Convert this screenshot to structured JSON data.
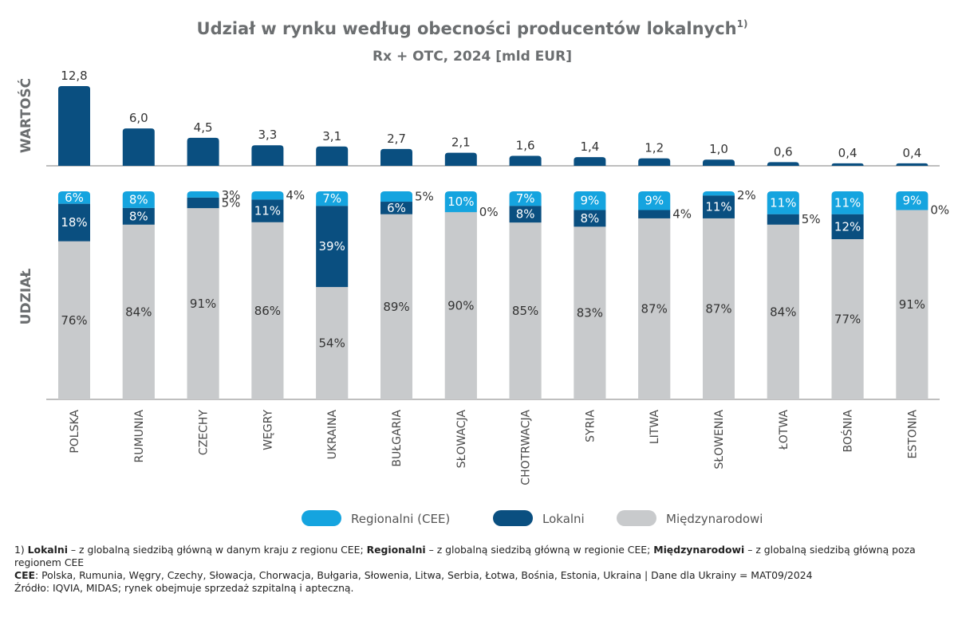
{
  "chart_data": {
    "type": "bar",
    "title": "Udział w rynku według obecności producentów lokalnych",
    "title_sup": "1)",
    "subtitle": "Rx + OTC, 2024 [mld EUR]",
    "top_panel_label": "WARTOŚĆ",
    "bottom_panel_label": "UDZIAŁ",
    "categories": [
      "POLSKA",
      "RUMUNIA",
      "CZECHY",
      "WĘGRY",
      "UKRAINA",
      "BUŁGARIA",
      "SŁOWACJA",
      "CHOTRWACJA",
      "SYRIA",
      "LITWA",
      "SŁOWENIA",
      "ŁOTWA",
      "BOŚNIA",
      "ESTONIA"
    ],
    "values": [
      12.8,
      6.0,
      4.5,
      3.3,
      3.1,
      2.7,
      2.1,
      1.6,
      1.4,
      1.2,
      1.0,
      0.6,
      0.4,
      0.4
    ],
    "value_labels": [
      "12,8",
      "6,0",
      "4,5",
      "3,3",
      "3,1",
      "2,7",
      "2,1",
      "1,6",
      "1,4",
      "1,2",
      "1,0",
      "0,6",
      "0,4",
      "0,4"
    ],
    "share_series": [
      {
        "name": "Międzynarodowi",
        "color": "#c8cacc",
        "values": [
          76,
          84,
          91,
          86,
          54,
          89,
          90,
          85,
          83,
          87,
          87,
          84,
          77,
          91
        ]
      },
      {
        "name": "Lokalni",
        "color": "#0a4f80",
        "values": [
          18,
          8,
          5,
          11,
          39,
          6,
          0,
          8,
          8,
          4,
          11,
          5,
          12,
          0
        ]
      },
      {
        "name": "Regionalni (CEE)",
        "color": "#15a4df",
        "values": [
          6,
          8,
          3,
          4,
          7,
          5,
          10,
          7,
          9,
          9,
          2,
          11,
          11,
          9
        ]
      }
    ],
    "legend": [
      "Regionalni (CEE)",
      "Lokalni",
      "Międzynarodowi"
    ],
    "legend_position": "bottom",
    "ylim_top": [
      0,
      12.8
    ],
    "ylim_bottom": [
      0,
      100
    ]
  },
  "colors": {
    "bar": "#0a4f80",
    "regional": "#15a4df",
    "local": "#0a4f80",
    "international": "#c8cacc"
  },
  "footnotes": {
    "n1_prefix": "1) ",
    "n1_lokalni_term": "Lokalni",
    "n1_lokalni_def": " – z globalną siedzibą główną w danym kraju z regionu CEE; ",
    "n1_regionalni_term": "Regionalni",
    "n1_regionalni_def": " – z globalną siedzibą główną w regionie CEE; ",
    "n1_miedzy_term": "Międzynarodowi",
    "n1_miedzy_def": " – z globalną siedzibą główną poza regionem CEE",
    "cee_term": "CEE",
    "cee_def": ": Polska, Rumunia, Węgry, Czechy, Słowacja, Chorwacja, Bułgaria, Słowenia, Litwa, Serbia, Łotwa, Bośnia, Estonia, Ukraina | Dane dla Ukrainy = MAT09/2024",
    "source": "Źródło: IQVIA, MIDAS; rynek obejmuje sprzedaż szpitalną i apteczną."
  }
}
